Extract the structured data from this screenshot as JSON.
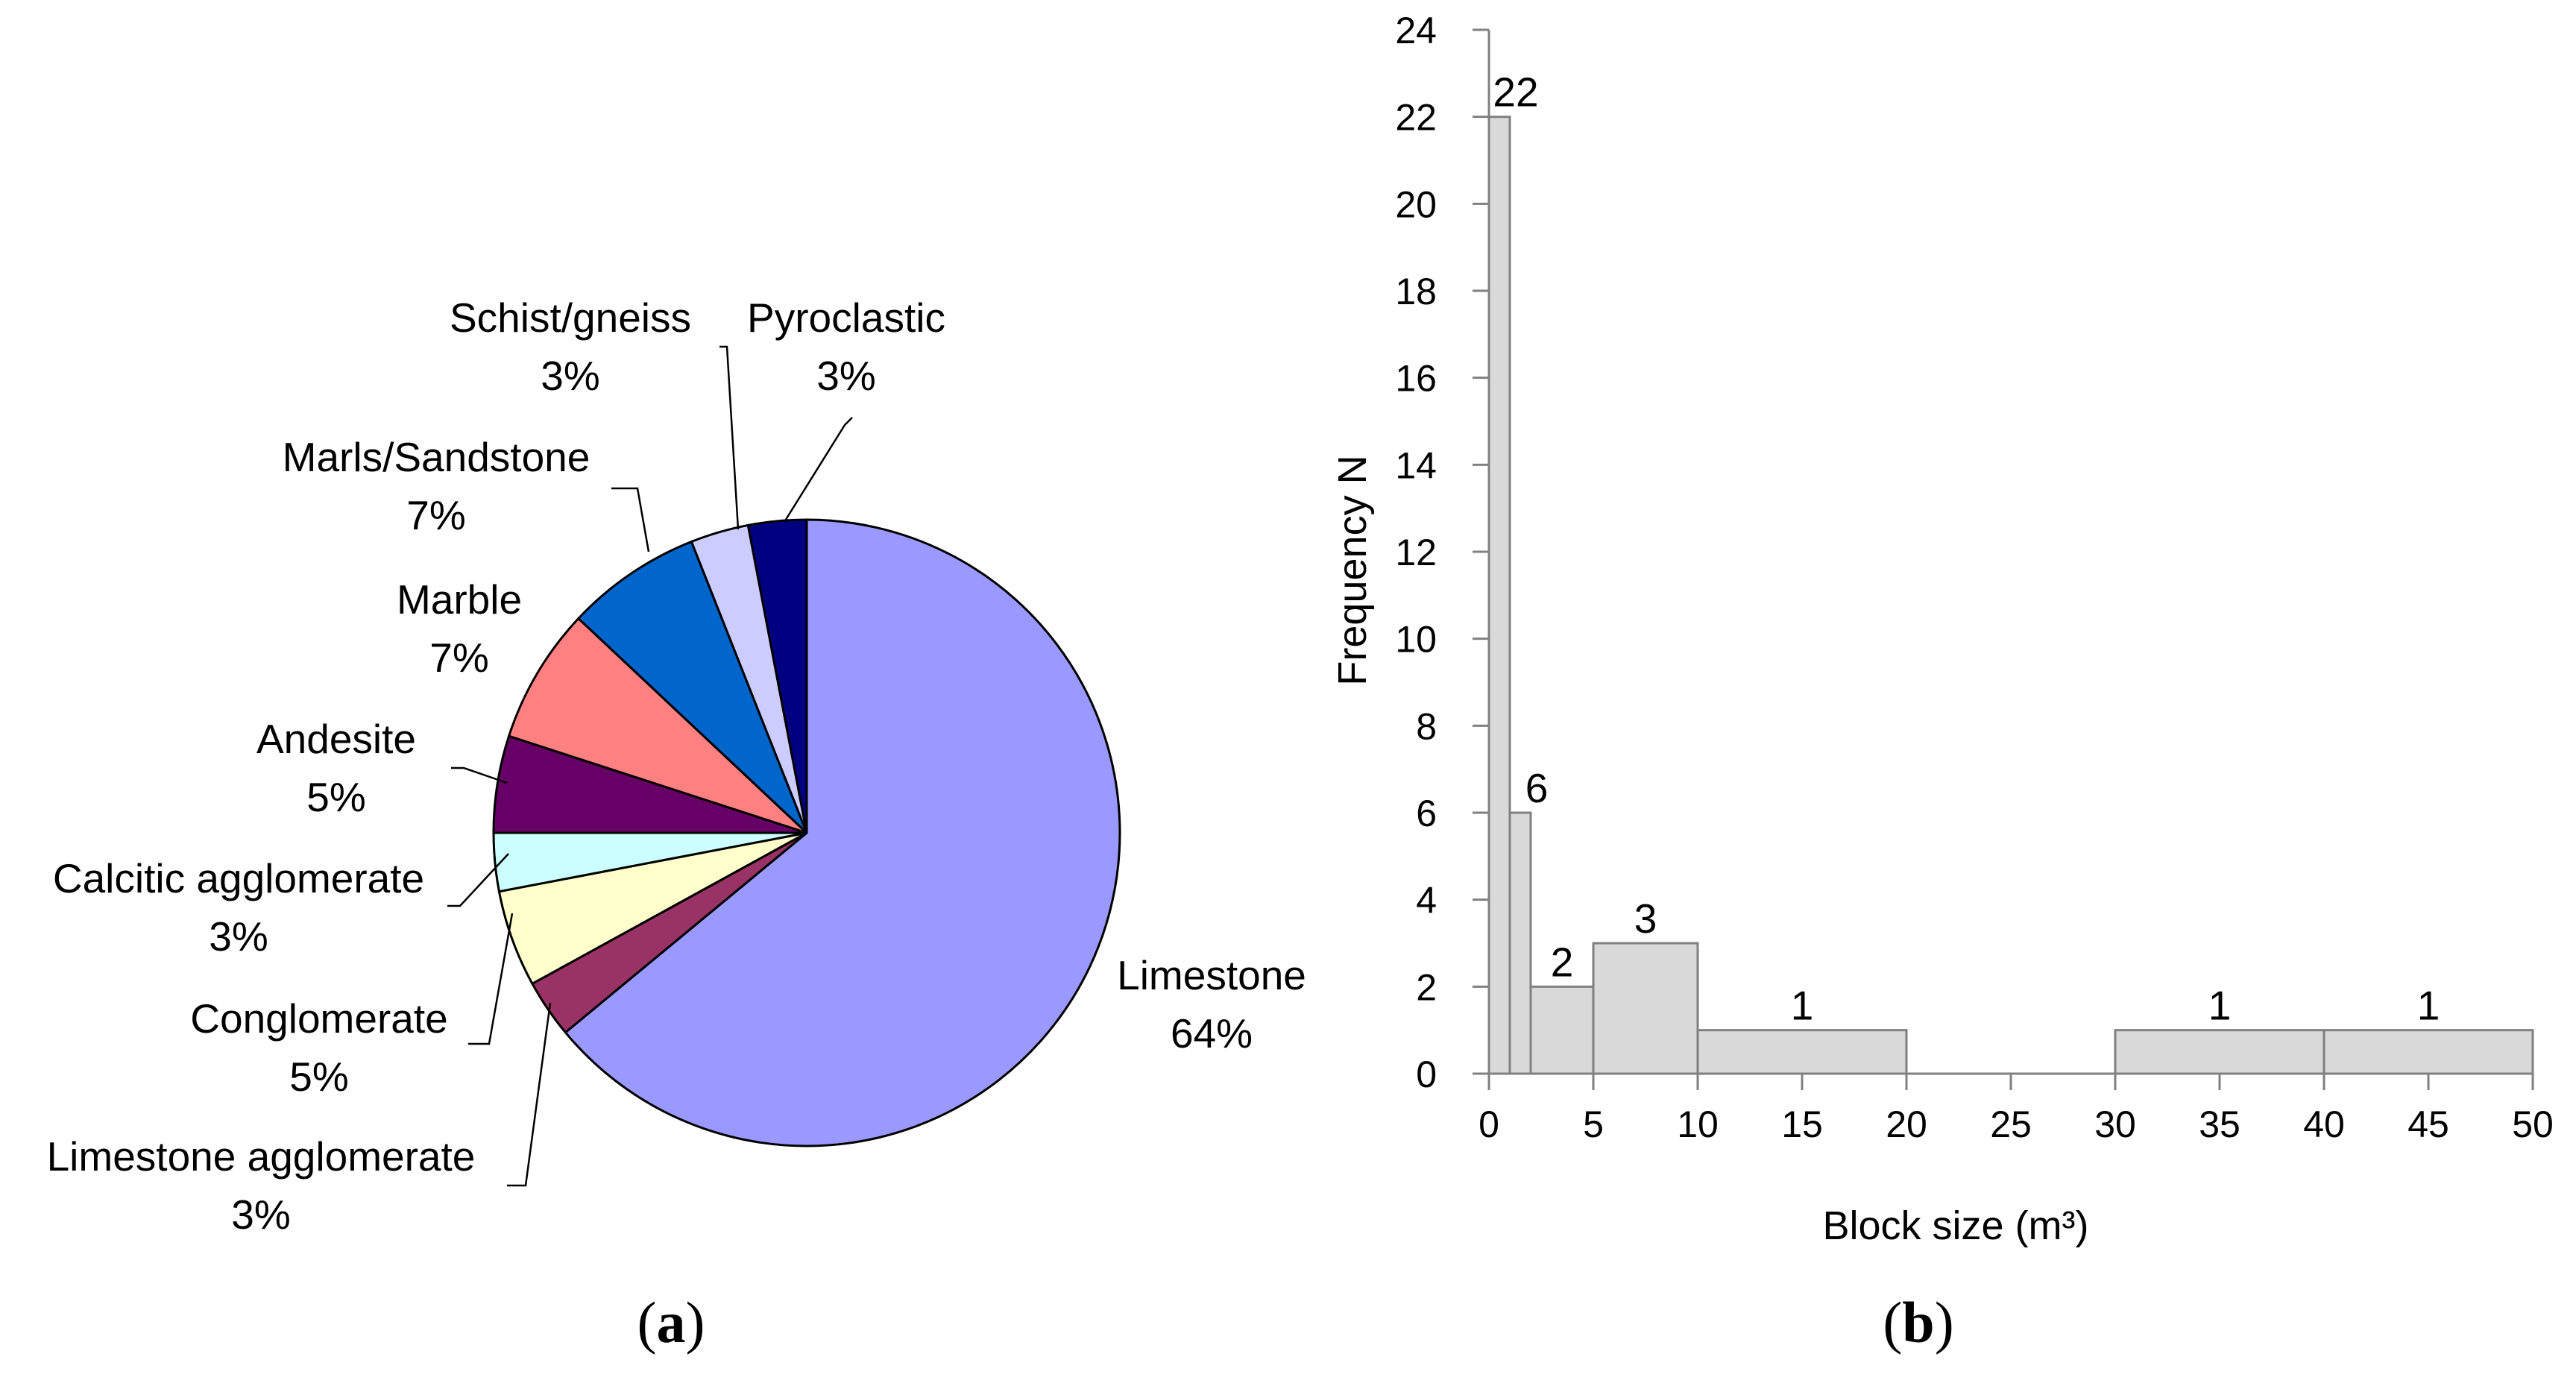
{
  "chart_data": [
    {
      "type": "pie",
      "panel_label": "a",
      "slices": [
        {
          "label": "Limestone",
          "pct_text": "64%",
          "value": 64,
          "color": "#9999ff"
        },
        {
          "label": "Limestone agglomerate",
          "pct_text": "3%",
          "value": 3,
          "color": "#993366"
        },
        {
          "label": "Conglomerate",
          "pct_text": "5%",
          "value": 5,
          "color": "#ffffcc"
        },
        {
          "label": "Calcitic agglomerate",
          "pct_text": "3%",
          "value": 3,
          "color": "#ccffff"
        },
        {
          "label": "Andesite",
          "pct_text": "5%",
          "value": 5,
          "color": "#660066"
        },
        {
          "label": "Marble",
          "pct_text": "7%",
          "value": 7,
          "color": "#ff8080"
        },
        {
          "label": "Marls/Sandstone",
          "pct_text": "7%",
          "value": 7,
          "color": "#0066cc"
        },
        {
          "label": "Schist/gneiss",
          "pct_text": "3%",
          "value": 3,
          "color": "#ccccff"
        },
        {
          "label": "Pyroclastic",
          "pct_text": "3%",
          "value": 3,
          "color": "#000080"
        }
      ]
    },
    {
      "type": "bar",
      "panel_label": "b",
      "xlabel": "Block size (m³)",
      "ylabel": "Frequency N",
      "xlim": [
        0,
        50
      ],
      "ylim": [
        0,
        24
      ],
      "xticks": [
        0,
        5,
        10,
        15,
        20,
        25,
        30,
        35,
        40,
        45,
        50
      ],
      "yticks": [
        0,
        2,
        4,
        6,
        8,
        10,
        12,
        14,
        16,
        18,
        20,
        22,
        24
      ],
      "bar_color": "#d9d9d9",
      "bins": [
        {
          "from": 0,
          "to": 1,
          "value": 22,
          "label": "22"
        },
        {
          "from": 1,
          "to": 2,
          "value": 6,
          "label": "6"
        },
        {
          "from": 2,
          "to": 5,
          "value": 2,
          "label": "2"
        },
        {
          "from": 5,
          "to": 10,
          "value": 3,
          "label": "3"
        },
        {
          "from": 10,
          "to": 20,
          "value": 1,
          "label": "1"
        },
        {
          "from": 30,
          "to": 40,
          "value": 1,
          "label": "1"
        },
        {
          "from": 40,
          "to": 50,
          "value": 1,
          "label": "1"
        }
      ]
    }
  ]
}
